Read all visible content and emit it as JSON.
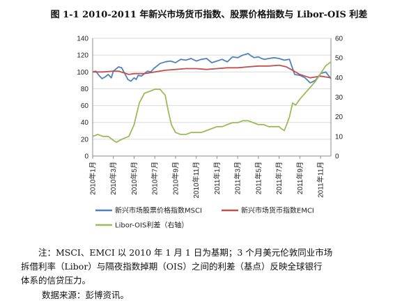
{
  "title": "图 1-1    2010-2011 年新兴市场货币指数、股票价格指数与 Libor-OIS 利差",
  "note": {
    "line1": "注：MSCI、EMCI 以 2010 年 1 月 1 日为基期；3 个月美元伦敦同业市场",
    "line2": "拆借利率（Libor）与隔夜指数掉期（OIS）之间的利差（基点）反映全球银行",
    "line3": "体系的信贷压力。"
  },
  "source": "数据来源：彭博资讯。",
  "chart_data": {
    "type": "line",
    "ylim": [
      0,
      140
    ],
    "y2lim": [
      0,
      60
    ],
    "yticks": [
      "0",
      "20",
      "40",
      "60",
      "80",
      "100",
      "120",
      "140"
    ],
    "y2ticks": [
      "0",
      "10",
      "20",
      "30",
      "40",
      "50",
      "60"
    ],
    "categories": [
      "2010年1月",
      "2010年3月",
      "2010年5月",
      "2010年7月",
      "2010年9月",
      "2010年11月",
      "2011年1月",
      "2011年3月",
      "2011年5月",
      "2011年7月",
      "2011年9月",
      "2011年11月"
    ],
    "grid": true,
    "legend_position": "bottom",
    "series": [
      {
        "name": "新兴市场股票价格指数MSCI",
        "axis": "left",
        "color": "#4f81bd",
        "x": [
          0,
          0.3,
          0.6,
          0.9,
          1.2,
          1.5,
          1.8,
          2.0,
          2.2,
          2.5,
          2.8,
          3.1,
          3.4,
          3.7,
          4.0,
          4.2,
          4.4,
          4.7,
          5.0,
          5.3,
          5.6,
          5.9,
          6.2,
          6.5,
          7.0,
          7.5,
          8.0,
          8.5,
          9.0,
          9.5,
          10.0,
          10.5,
          11.0,
          11.5,
          12.0,
          12.5,
          13.0,
          13.5,
          14.0,
          14.5,
          14.8,
          15.0,
          15.3,
          15.6,
          16.0,
          16.3,
          16.6,
          17.0,
          17.5,
          18.0,
          18.5,
          19.0,
          19.5,
          20.0,
          20.5,
          21.0,
          21.5,
          22.0,
          22.5,
          23.0
        ],
        "y": [
          100,
          101,
          96,
          92,
          94,
          97,
          93,
          101,
          103,
          106,
          105,
          98,
          91,
          89,
          93,
          91,
          96,
          95,
          98,
          101,
          100,
          104,
          107,
          110,
          112,
          113,
          111,
          115,
          114,
          116,
          113,
          115,
          116,
          111,
          113,
          115,
          112,
          118,
          117,
          120,
          121,
          122,
          119,
          117,
          118,
          116,
          115,
          116,
          117,
          116,
          114,
          115,
          97,
          96,
          93,
          87,
          90,
          98,
          100,
          92
        ]
      },
      {
        "name": "新兴市场货币指数EMCI",
        "axis": "left",
        "color": "#c0504d",
        "x": [
          0,
          1,
          2,
          2.5,
          3,
          3.5,
          4,
          5,
          6,
          7,
          8,
          9,
          10,
          11,
          12,
          13,
          14,
          15,
          16,
          17,
          18,
          18.7,
          19.3,
          20,
          20.5,
          21,
          21.5,
          22,
          22.5,
          23
        ],
        "y": [
          100,
          100,
          101,
          101,
          99,
          97,
          98,
          98,
          100,
          102,
          103,
          104,
          104,
          103,
          104,
          105,
          105,
          106,
          107,
          107,
          108,
          106,
          102,
          97,
          95,
          93,
          94,
          95,
          94,
          93
        ]
      },
      {
        "name": "Libor-OIS利差（右轴）",
        "axis": "right",
        "color": "#9bbb59",
        "x": [
          0,
          0.5,
          1.0,
          1.5,
          2.0,
          2.3,
          2.6,
          3.0,
          3.5,
          4.0,
          4.5,
          5.0,
          5.5,
          6.0,
          6.5,
          7.0,
          7.3,
          7.6,
          8.0,
          8.5,
          9.0,
          9.5,
          10.0,
          10.5,
          11.0,
          11.5,
          12.0,
          12.5,
          13.0,
          13.5,
          14.0,
          14.5,
          15.0,
          15.5,
          16.0,
          16.5,
          17.0,
          17.5,
          18.0,
          18.2,
          18.5,
          18.8,
          19.0,
          19.3,
          19.6,
          20.0,
          20.5,
          21.0,
          21.5,
          22.0,
          22.5,
          23.0
        ],
        "y": [
          10,
          11,
          10,
          10,
          8,
          7,
          8,
          9,
          10,
          16,
          27,
          32,
          33,
          34,
          34,
          31,
          23,
          16,
          12,
          11,
          11,
          12,
          12,
          12,
          13,
          14,
          15,
          15,
          16,
          17,
          17,
          18,
          18,
          17,
          16,
          16,
          15,
          15,
          15,
          14,
          13,
          17,
          20,
          27,
          26,
          29,
          32,
          35,
          38,
          42,
          46,
          48
        ]
      }
    ]
  }
}
